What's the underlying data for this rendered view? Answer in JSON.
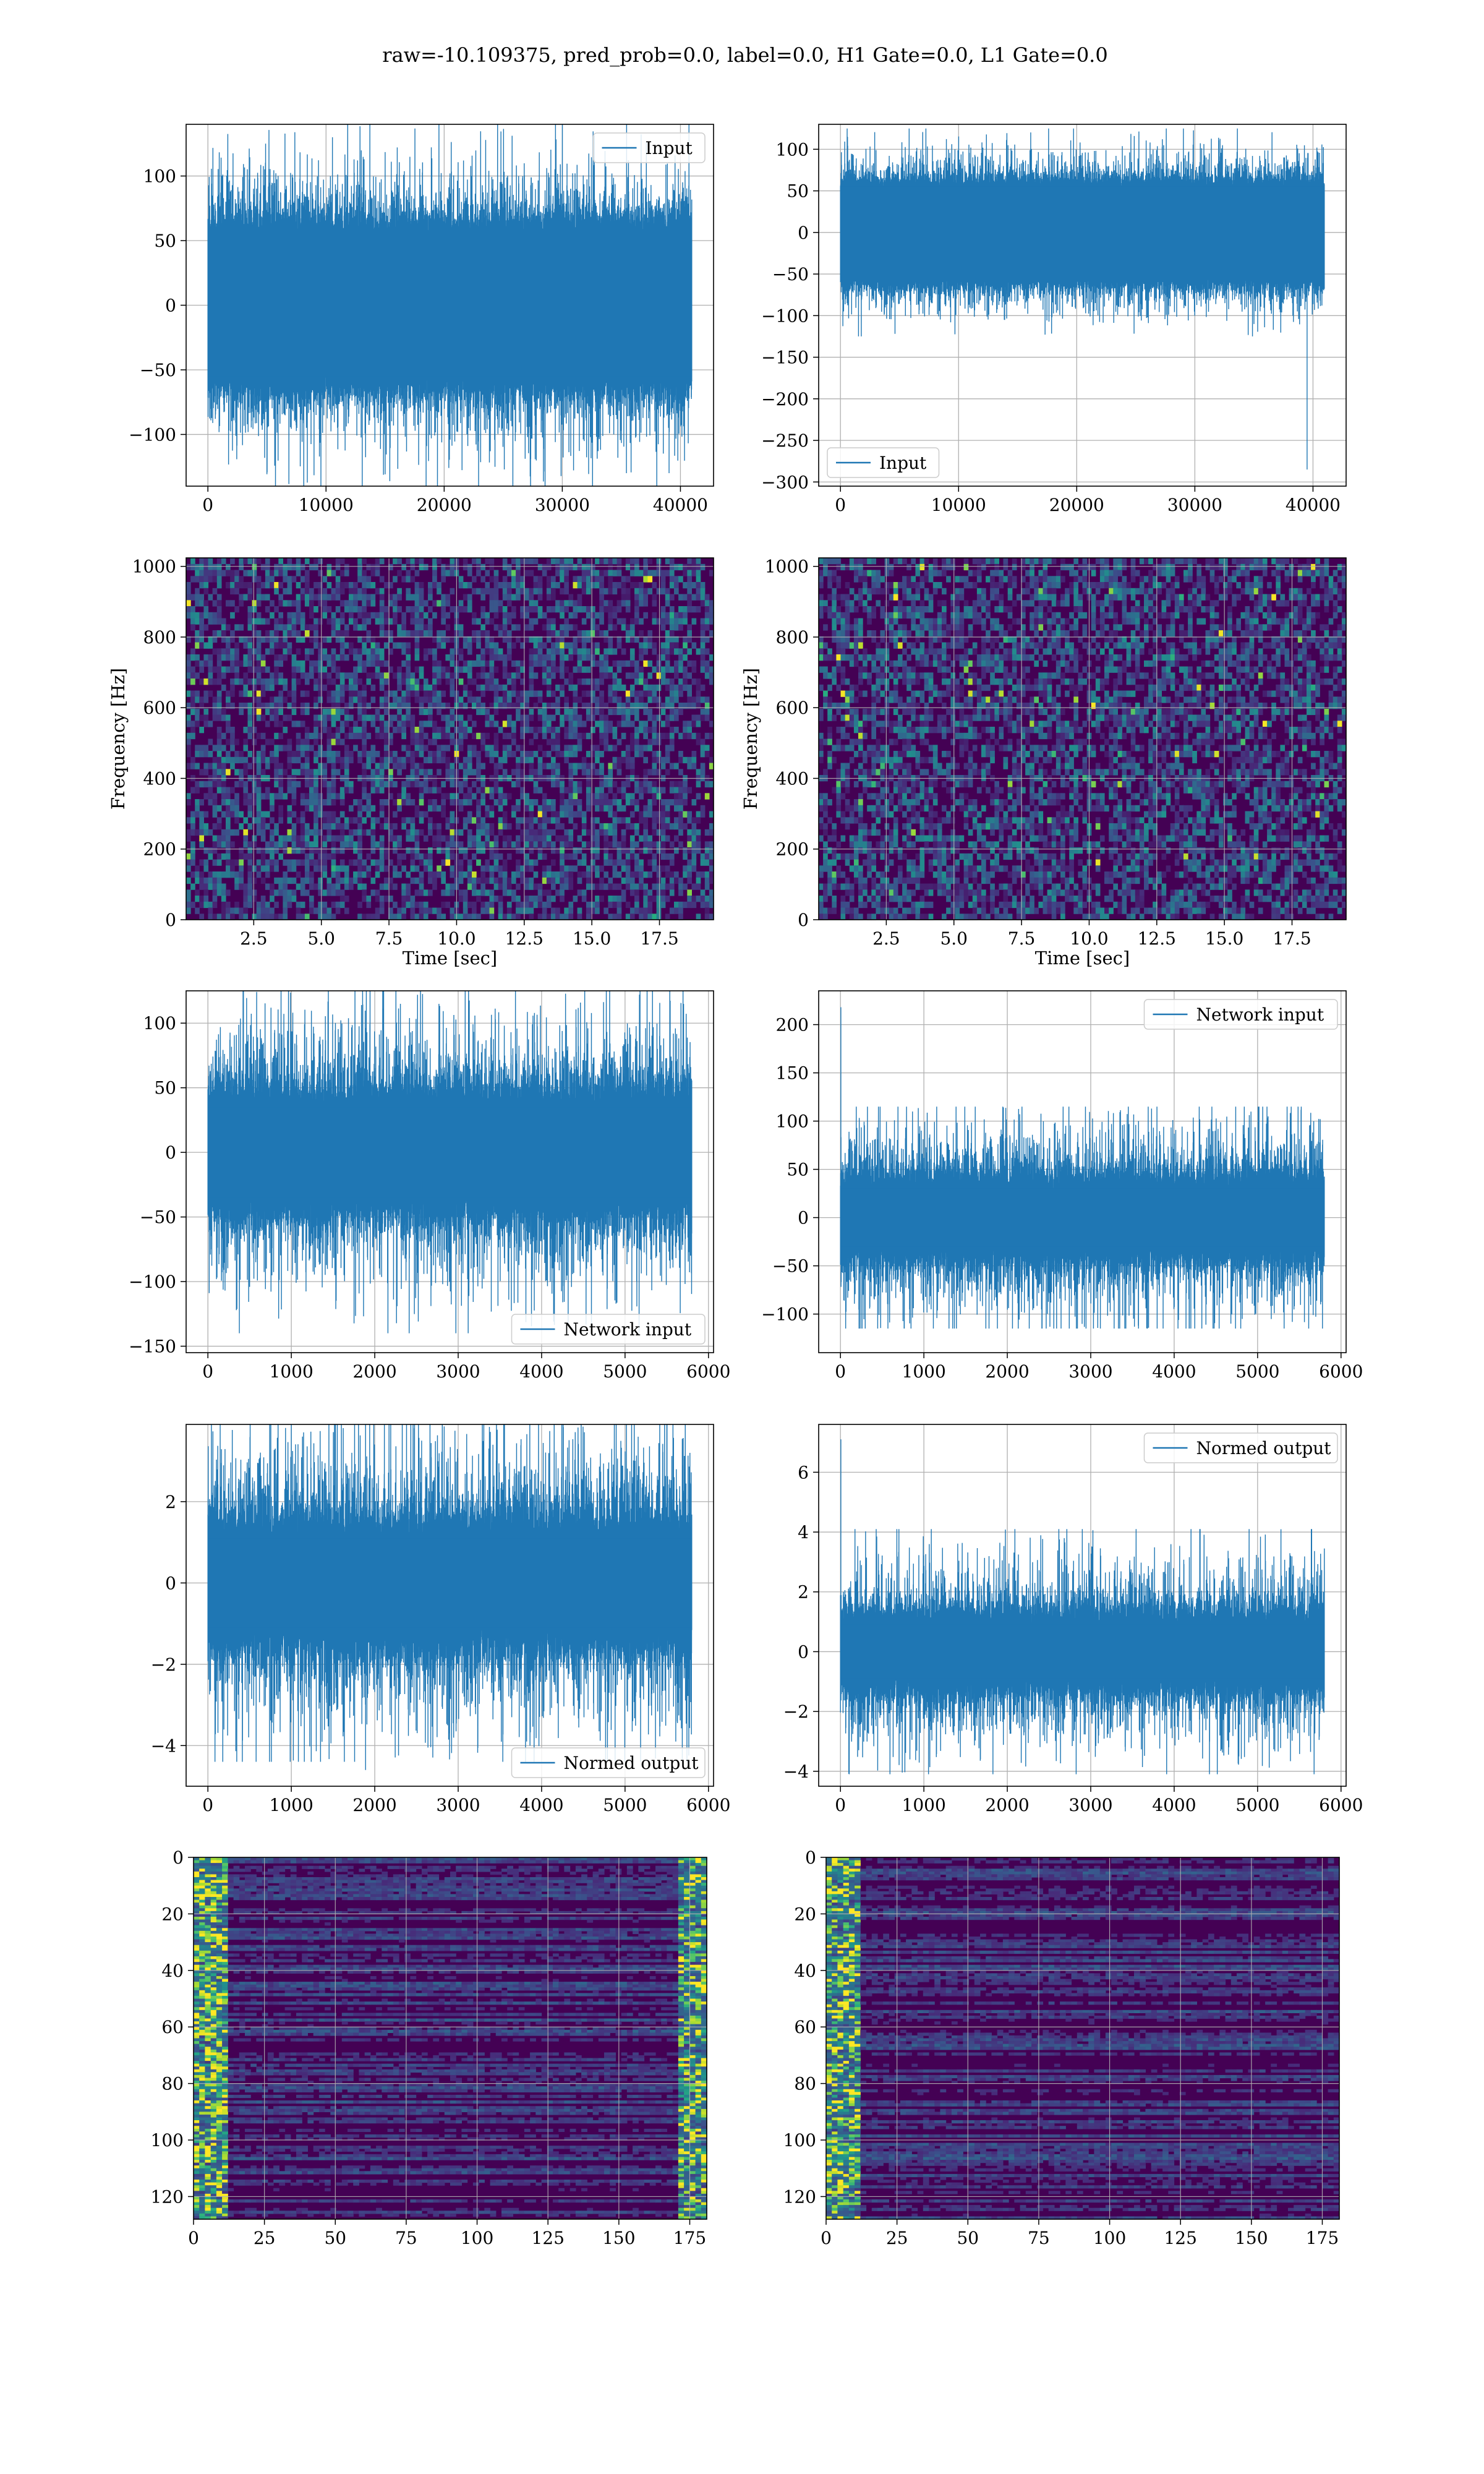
{
  "figure": {
    "suptitle": "raw=-10.109375, pred_prob=0.0, label=0.0, H1 Gate=0.0, L1 Gate=0.0"
  },
  "colors": {
    "line": "#1f77b4",
    "grid": "#b0b0b0",
    "viridis_dark": "#440154"
  },
  "chart_data": [
    {
      "panel": "r1c1",
      "type": "line",
      "series": [
        {
          "name": "Input"
        }
      ],
      "x_range": [
        0,
        40960
      ],
      "ylim": [
        -140,
        140
      ],
      "envelope": {
        "core": 55,
        "tail_scale": 20,
        "tail_cap": 90
      },
      "xticks": [
        0,
        10000,
        20000,
        30000,
        40000
      ],
      "yticks": [
        100,
        50,
        0,
        -50,
        -100
      ],
      "xlabel": "",
      "ylabel": "",
      "legend": "upper right",
      "grid": true
    },
    {
      "panel": "r1c2",
      "type": "line",
      "series": [
        {
          "name": "Input"
        }
      ],
      "x_range": [
        0,
        40960
      ],
      "ylim": [
        -305,
        130
      ],
      "envelope": {
        "core": 55,
        "tail_scale": 15,
        "tail_cap": 70
      },
      "spikes": [
        {
          "x": 39500,
          "y": -285
        }
      ],
      "xticks": [
        0,
        10000,
        20000,
        30000,
        40000
      ],
      "yticks": [
        100,
        50,
        0,
        -50,
        -100,
        -150,
        -200,
        -250,
        -300
      ],
      "xlabel": "",
      "ylabel": "",
      "legend": "lower left",
      "grid": true
    },
    {
      "panel": "r2c1",
      "type": "heatmap",
      "xlim": [
        0,
        19.5
      ],
      "ylim": [
        0,
        1024
      ],
      "xticks": [
        "2.5",
        "5.0",
        "7.5",
        "10.0",
        "12.5",
        "15.0",
        "17.5"
      ],
      "yticks": [
        0,
        200,
        400,
        600,
        800,
        1000
      ],
      "xlabel": "Time [sec]",
      "ylabel": "Frequency [Hz]",
      "grid": true
    },
    {
      "panel": "r2c2",
      "type": "heatmap",
      "xlim": [
        0,
        19.5
      ],
      "ylim": [
        0,
        1024
      ],
      "xticks": [
        "2.5",
        "5.0",
        "7.5",
        "10.0",
        "12.5",
        "15.0",
        "17.5"
      ],
      "yticks": [
        0,
        200,
        400,
        600,
        800,
        1000
      ],
      "xlabel": "Time [sec]",
      "ylabel": "Frequency [Hz]",
      "grid": true
    },
    {
      "panel": "r3c1",
      "type": "line",
      "series": [
        {
          "name": "Network input"
        }
      ],
      "x_range": [
        0,
        5800
      ],
      "ylim": [
        -155,
        125
      ],
      "envelope": {
        "core": 35,
        "tail_scale": 25,
        "tail_cap": 105
      },
      "xticks": [
        0,
        1000,
        2000,
        3000,
        4000,
        5000,
        6000
      ],
      "yticks": [
        100,
        50,
        0,
        -50,
        -100,
        -150
      ],
      "xlabel": "",
      "ylabel": "",
      "legend": "lower right",
      "grid": true
    },
    {
      "panel": "r3c2",
      "type": "line",
      "series": [
        {
          "name": "Network input"
        }
      ],
      "x_range": [
        0,
        5800
      ],
      "ylim": [
        -140,
        235
      ],
      "envelope": {
        "core": 30,
        "tail_scale": 25,
        "tail_cap": 85
      },
      "spikes": [
        {
          "x": 5,
          "y": 218
        }
      ],
      "xticks": [
        0,
        1000,
        2000,
        3000,
        4000,
        5000,
        6000
      ],
      "yticks": [
        200,
        150,
        100,
        50,
        0,
        -50,
        -100
      ],
      "xlabel": "",
      "ylabel": "",
      "legend": "upper right",
      "grid": true
    },
    {
      "panel": "r4c1",
      "type": "line",
      "series": [
        {
          "name": "Normed output"
        }
      ],
      "x_range": [
        0,
        5800
      ],
      "ylim": [
        -5.0,
        3.9
      ],
      "envelope": {
        "core": 1.1,
        "tail_scale": 0.9,
        "tail_cap": 3.3
      },
      "spikes": [
        {
          "x": 1890,
          "y": -4.6
        }
      ],
      "xticks": [
        0,
        1000,
        2000,
        3000,
        4000,
        5000,
        6000
      ],
      "yticks": [
        2,
        0,
        -2,
        -4
      ],
      "xlabel": "",
      "ylabel": "",
      "legend": "lower right",
      "grid": true
    },
    {
      "panel": "r4c2",
      "type": "line",
      "series": [
        {
          "name": "Normed output"
        }
      ],
      "x_range": [
        0,
        5800
      ],
      "ylim": [
        -4.5,
        7.6
      ],
      "envelope": {
        "core": 0.9,
        "tail_scale": 0.8,
        "tail_cap": 3.2
      },
      "spikes": [
        {
          "x": 5,
          "y": 7.1
        }
      ],
      "xticks": [
        0,
        1000,
        2000,
        3000,
        4000,
        5000,
        6000
      ],
      "yticks": [
        6,
        4,
        2,
        0,
        -2,
        -4
      ],
      "xlabel": "",
      "ylabel": "",
      "legend": "upper right",
      "grid": true
    },
    {
      "panel": "r5c1",
      "type": "heatmap",
      "xlim": [
        0,
        181
      ],
      "ylim": [
        0,
        128
      ],
      "xticks": [
        0,
        25,
        50,
        75,
        100,
        125,
        150,
        175
      ],
      "yticks": [
        0,
        20,
        40,
        60,
        80,
        100,
        120
      ],
      "xlabel": "",
      "ylabel": "",
      "grid": true
    },
    {
      "panel": "r5c2",
      "type": "heatmap",
      "xlim": [
        0,
        181
      ],
      "ylim": [
        0,
        128
      ],
      "xticks": [
        0,
        25,
        50,
        75,
        100,
        125,
        150,
        175
      ],
      "yticks": [
        0,
        20,
        40,
        60,
        80,
        100,
        120
      ],
      "xlabel": "",
      "ylabel": "",
      "grid": true
    }
  ]
}
